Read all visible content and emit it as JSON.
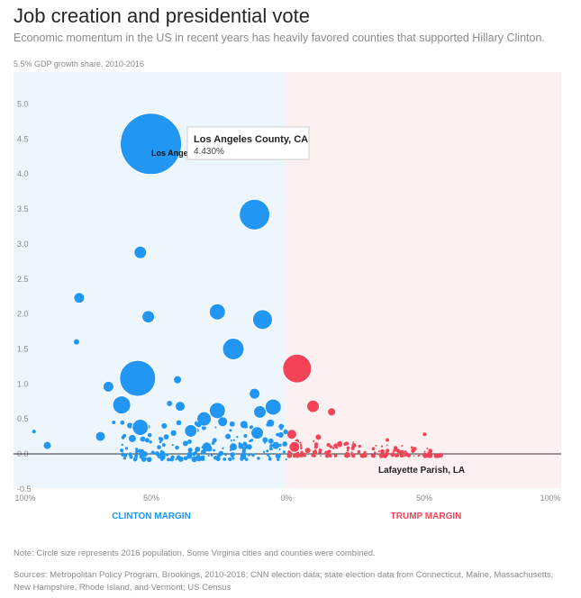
{
  "header": {
    "title": "Job creation and presidential vote",
    "subtitle": "Economic momentum in the US in recent years has heavily favored counties that supported Hillary Clinton."
  },
  "chart_data": {
    "type": "scatter",
    "title": "Job creation and presidential vote",
    "ylabel": "5.5% GDP growth share, 2010-2016",
    "xlabel": "",
    "xlim": [
      -100,
      100
    ],
    "ylim": [
      -0.5,
      5.5
    ],
    "y_ticks": [
      "-0.5",
      "0.0",
      "0.5",
      "1.0",
      "1.5",
      "2.0",
      "2.5",
      "3.0",
      "3.5",
      "4.0",
      "4.5",
      "5.0"
    ],
    "x_ticks": [
      "100%",
      "50%",
      "0%",
      "50%",
      "100%"
    ],
    "region_labels": {
      "left": "CLINTON MARGIN",
      "right": "TRUMP MARGIN"
    },
    "colors": {
      "clinton": "#2196f3",
      "trump": "#f44356",
      "clinton_bg": "#eef6fd",
      "trump_bg": "#fdf0f1"
    },
    "annotations": [
      {
        "text": "Lafayette Parish, LA",
        "x": 35,
        "y": -0.22
      }
    ],
    "tooltip": {
      "name": "Los Angeles County, CA",
      "value": "4.430%",
      "label_on_bubble": "Los Angeles"
    },
    "series": [
      {
        "party": "clinton",
        "points": [
          {
            "x": -51,
            "y": 4.43,
            "r": 34
          },
          {
            "x": -12,
            "y": 3.42,
            "r": 17
          },
          {
            "x": -55,
            "y": 2.88,
            "r": 7
          },
          {
            "x": -78,
            "y": 2.23,
            "r": 6
          },
          {
            "x": -26,
            "y": 2.03,
            "r": 9
          },
          {
            "x": -52,
            "y": 1.96,
            "r": 7
          },
          {
            "x": -9,
            "y": 1.92,
            "r": 11
          },
          {
            "x": -79,
            "y": 1.6,
            "r": 3
          },
          {
            "x": -20,
            "y": 1.5,
            "r": 12
          },
          {
            "x": -56,
            "y": 1.08,
            "r": 20
          },
          {
            "x": -67,
            "y": 0.96,
            "r": 6
          },
          {
            "x": -41,
            "y": 1.06,
            "r": 4
          },
          {
            "x": -12,
            "y": 0.86,
            "r": 6
          },
          {
            "x": -62,
            "y": 0.7,
            "r": 10
          },
          {
            "x": -5,
            "y": 0.67,
            "r": 9
          },
          {
            "x": -26,
            "y": 0.62,
            "r": 9
          },
          {
            "x": -40,
            "y": 0.68,
            "r": 5
          },
          {
            "x": -10,
            "y": 0.6,
            "r": 7
          },
          {
            "x": -31,
            "y": 0.5,
            "r": 8
          },
          {
            "x": -55,
            "y": 0.38,
            "r": 9
          },
          {
            "x": -36,
            "y": 0.33,
            "r": 7
          },
          {
            "x": -11,
            "y": 0.3,
            "r": 7
          },
          {
            "x": -70,
            "y": 0.25,
            "r": 5
          },
          {
            "x": -90,
            "y": 0.12,
            "r": 4
          },
          {
            "x": -24,
            "y": 0.46,
            "r": 5
          },
          {
            "x": -16,
            "y": 0.42,
            "r": 4
          },
          {
            "x": -58,
            "y": 0.22,
            "r": 4
          },
          {
            "x": -44,
            "y": 0.72,
            "r": 3
          },
          {
            "x": -95,
            "y": 0.32,
            "r": 2
          },
          {
            "x": -4,
            "y": 0.12,
            "r": 4
          },
          {
            "x": -30,
            "y": 0.1,
            "r": 5
          },
          {
            "x": -20,
            "y": 0.1,
            "r": 4
          },
          {
            "x": -8,
            "y": 0.2,
            "r": 3
          },
          {
            "x": -46,
            "y": 0.4,
            "r": 3
          },
          {
            "x": -38,
            "y": 0.15,
            "r": 3
          },
          {
            "x": -14,
            "y": 0.1,
            "r": 3
          },
          {
            "x": -6,
            "y": 0.44,
            "r": 4
          },
          {
            "x": -22,
            "y": 0.25,
            "r": 3
          },
          {
            "x": -33,
            "y": 0.42,
            "r": 3
          },
          {
            "x": -65,
            "y": 0.45,
            "r": 2
          }
        ]
      },
      {
        "party": "trump",
        "points": [
          {
            "x": 4,
            "y": 1.22,
            "r": 16
          },
          {
            "x": 10,
            "y": 0.68,
            "r": 7
          },
          {
            "x": 2,
            "y": 0.28,
            "r": 5
          },
          {
            "x": 3,
            "y": 0.1,
            "r": 6
          },
          {
            "x": 17,
            "y": 0.6,
            "r": 4
          },
          {
            "x": 12,
            "y": 0.24,
            "r": 3
          },
          {
            "x": 20,
            "y": 0.14,
            "r": 3
          },
          {
            "x": 8,
            "y": 0.05,
            "r": 3
          },
          {
            "x": 25,
            "y": 0.08,
            "r": 2
          },
          {
            "x": 38,
            "y": 0.2,
            "r": 2
          },
          {
            "x": 52,
            "y": 0.28,
            "r": 2
          },
          {
            "x": 15,
            "y": 0.02,
            "r": 2
          }
        ]
      }
    ]
  },
  "footer": {
    "note": "Note: Circle size represents 2016 population. Some Virginia cities and counties were combined.",
    "sources": "Sources: Metropolitan Policy Program, Brookings, 2010-2016; CNN election data; state election data from Connecticut, Maine, Massachusetts, New Hampshire, Rhode Island, and Vermont; US Census"
  }
}
